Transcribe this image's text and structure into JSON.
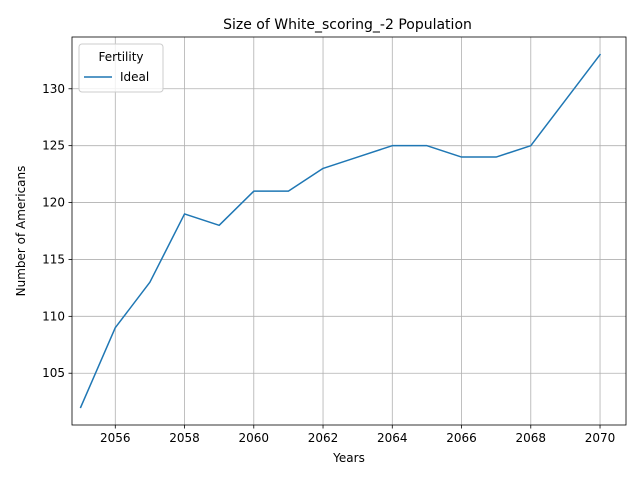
{
  "chart_data": {
    "type": "line",
    "title": "Size of White_scoring_-2 Population",
    "xlabel": "Years",
    "ylabel": "Number of Americans",
    "xlim": [
      2054.75,
      2070.75
    ],
    "ylim": [
      100.45,
      134.55
    ],
    "xticks": [
      2056,
      2058,
      2060,
      2062,
      2064,
      2066,
      2068,
      2070
    ],
    "yticks": [
      105,
      110,
      115,
      120,
      125,
      130
    ],
    "grid": true,
    "legend": {
      "title": "Fertility",
      "placement": "top-left"
    },
    "series": [
      {
        "name": "Ideal",
        "color": "#1f77b4",
        "x": [
          2055,
          2056,
          2057,
          2058,
          2059,
          2060,
          2061,
          2062,
          2063,
          2064,
          2065,
          2066,
          2067,
          2068,
          2069,
          2070
        ],
        "y": [
          102,
          109,
          113,
          119,
          118,
          121,
          121,
          123,
          124,
          125,
          125,
          124,
          124,
          125,
          129,
          133
        ]
      }
    ]
  }
}
